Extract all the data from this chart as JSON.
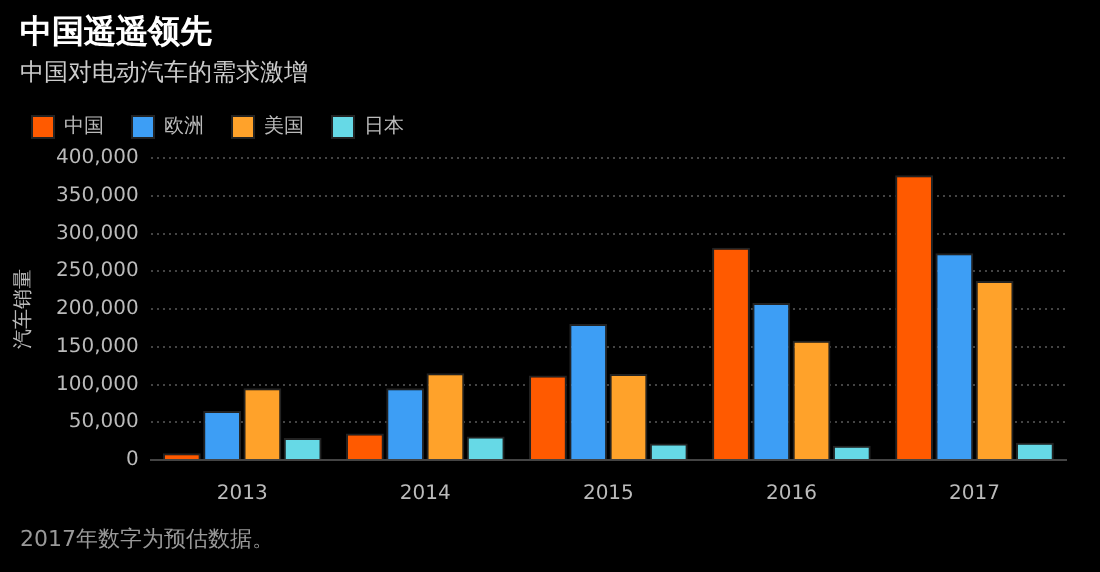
{
  "chart_data": {
    "type": "bar",
    "title": "中国遥遥领先",
    "subtitle": "中国对电动汽车的需求激增",
    "ylabel": "汽车销量",
    "categories": [
      "2013",
      "2014",
      "2015",
      "2016",
      "2017"
    ],
    "series": [
      {
        "name": "中国",
        "color": "#ff5a00",
        "values": [
          9000,
          35000,
          112000,
          281000,
          377000
        ]
      },
      {
        "name": "欧洲",
        "color": "#3d9ef5",
        "values": [
          65000,
          95000,
          180000,
          208000,
          274000
        ]
      },
      {
        "name": "美国",
        "color": "#ffa22a",
        "values": [
          95000,
          115000,
          114000,
          158000,
          237000
        ]
      },
      {
        "name": "日本",
        "color": "#66d9e6",
        "values": [
          29000,
          31000,
          22000,
          19000,
          23000
        ]
      }
    ],
    "ylim": [
      0,
      400000
    ],
    "yticks": [
      0,
      {
        "value": 50000,
        "label": "50,000"
      },
      {
        "value": 100000,
        "label": "100,000"
      },
      {
        "value": 150000,
        "label": "150,000"
      },
      {
        "value": 200000,
        "label": "200,000"
      },
      {
        "value": 250000,
        "label": "250,000"
      },
      {
        "value": 300000,
        "label": "300,000"
      },
      {
        "value": 350000,
        "label": "350,000"
      },
      {
        "value": 400000,
        "label": "400,000"
      }
    ],
    "grid": "y",
    "legend": "top left",
    "annotations": [
      "2017年数字为预估数据。"
    ]
  }
}
